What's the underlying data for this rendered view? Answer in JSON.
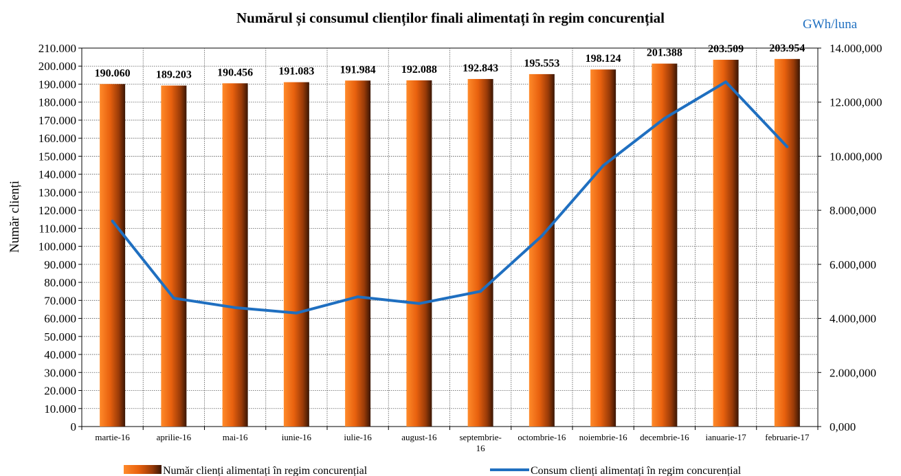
{
  "chart_data": {
    "type": "bar+line",
    "title": "Numărul și consumul clienților finali alimentați în regim concurențial",
    "ylabel": "Număr clienți",
    "y2label": "GWh/luna",
    "categories": [
      "martie-16",
      "aprilie-16",
      "mai-16",
      "iunie-16",
      "iulie-16",
      "august-16",
      "septembrie-16",
      "octombrie-16",
      "noiembrie-16",
      "decembrie-16",
      "ianuarie-17",
      "februarie-17"
    ],
    "category_lines": [
      [
        "martie-16"
      ],
      [
        "aprilie-16"
      ],
      [
        "mai-16"
      ],
      [
        "iunie-16"
      ],
      [
        "iulie-16"
      ],
      [
        "august-16"
      ],
      [
        "septembrie-",
        "16"
      ],
      [
        "octombrie-16"
      ],
      [
        "noiembrie-16"
      ],
      [
        "decembrie-16"
      ],
      [
        "ianuarie-17"
      ],
      [
        "februarie-17"
      ]
    ],
    "ylim": [
      0,
      210000
    ],
    "y_ticks": [
      0,
      10000,
      20000,
      30000,
      40000,
      50000,
      60000,
      70000,
      80000,
      90000,
      100000,
      110000,
      120000,
      130000,
      140000,
      150000,
      160000,
      170000,
      180000,
      190000,
      200000,
      210000
    ],
    "y_tick_labels": [
      "0",
      "10.000",
      "20.000",
      "30.000",
      "40.000",
      "50.000",
      "60.000",
      "70.000",
      "80.000",
      "90.000",
      "100.000",
      "110.000",
      "120.000",
      "130.000",
      "140.000",
      "150.000",
      "160.000",
      "170.000",
      "180.000",
      "190.000",
      "200.000",
      "210.000"
    ],
    "y2lim": [
      0,
      14000000
    ],
    "y2_ticks": [
      0,
      2000000,
      4000000,
      6000000,
      8000000,
      10000000,
      12000000,
      14000000
    ],
    "y2_tick_labels": [
      "0,000",
      "2.000,000",
      "4.000,000",
      "6.000,000",
      "8.000,000",
      "10.000,000",
      "12.000,000",
      "14.000,000"
    ],
    "grid": true,
    "legend_position": "bottom",
    "series": [
      {
        "name": "Număr clienți alimentați în regim concurențial",
        "type": "bar",
        "axis": "left",
        "color": "#e8610e",
        "values": [
          190060,
          189203,
          190456,
          191083,
          191984,
          192088,
          192843,
          195553,
          198124,
          201388,
          203509,
          203954
        ],
        "data_labels": [
          "190.060",
          "189.203",
          "190.456",
          "191.083",
          "191.984",
          "192.088",
          "192.843",
          "195.553",
          "198.124",
          "201.388",
          "203.509",
          "203.954"
        ]
      },
      {
        "name": "Consum clienți alimentați în regim concurențial",
        "type": "line",
        "axis": "right",
        "color": "#1f6fc0",
        "values": [
          7600000,
          4750000,
          4400000,
          4200000,
          4800000,
          4550000,
          5000000,
          7050000,
          9650000,
          11400000,
          12750000,
          10350000
        ]
      }
    ]
  }
}
